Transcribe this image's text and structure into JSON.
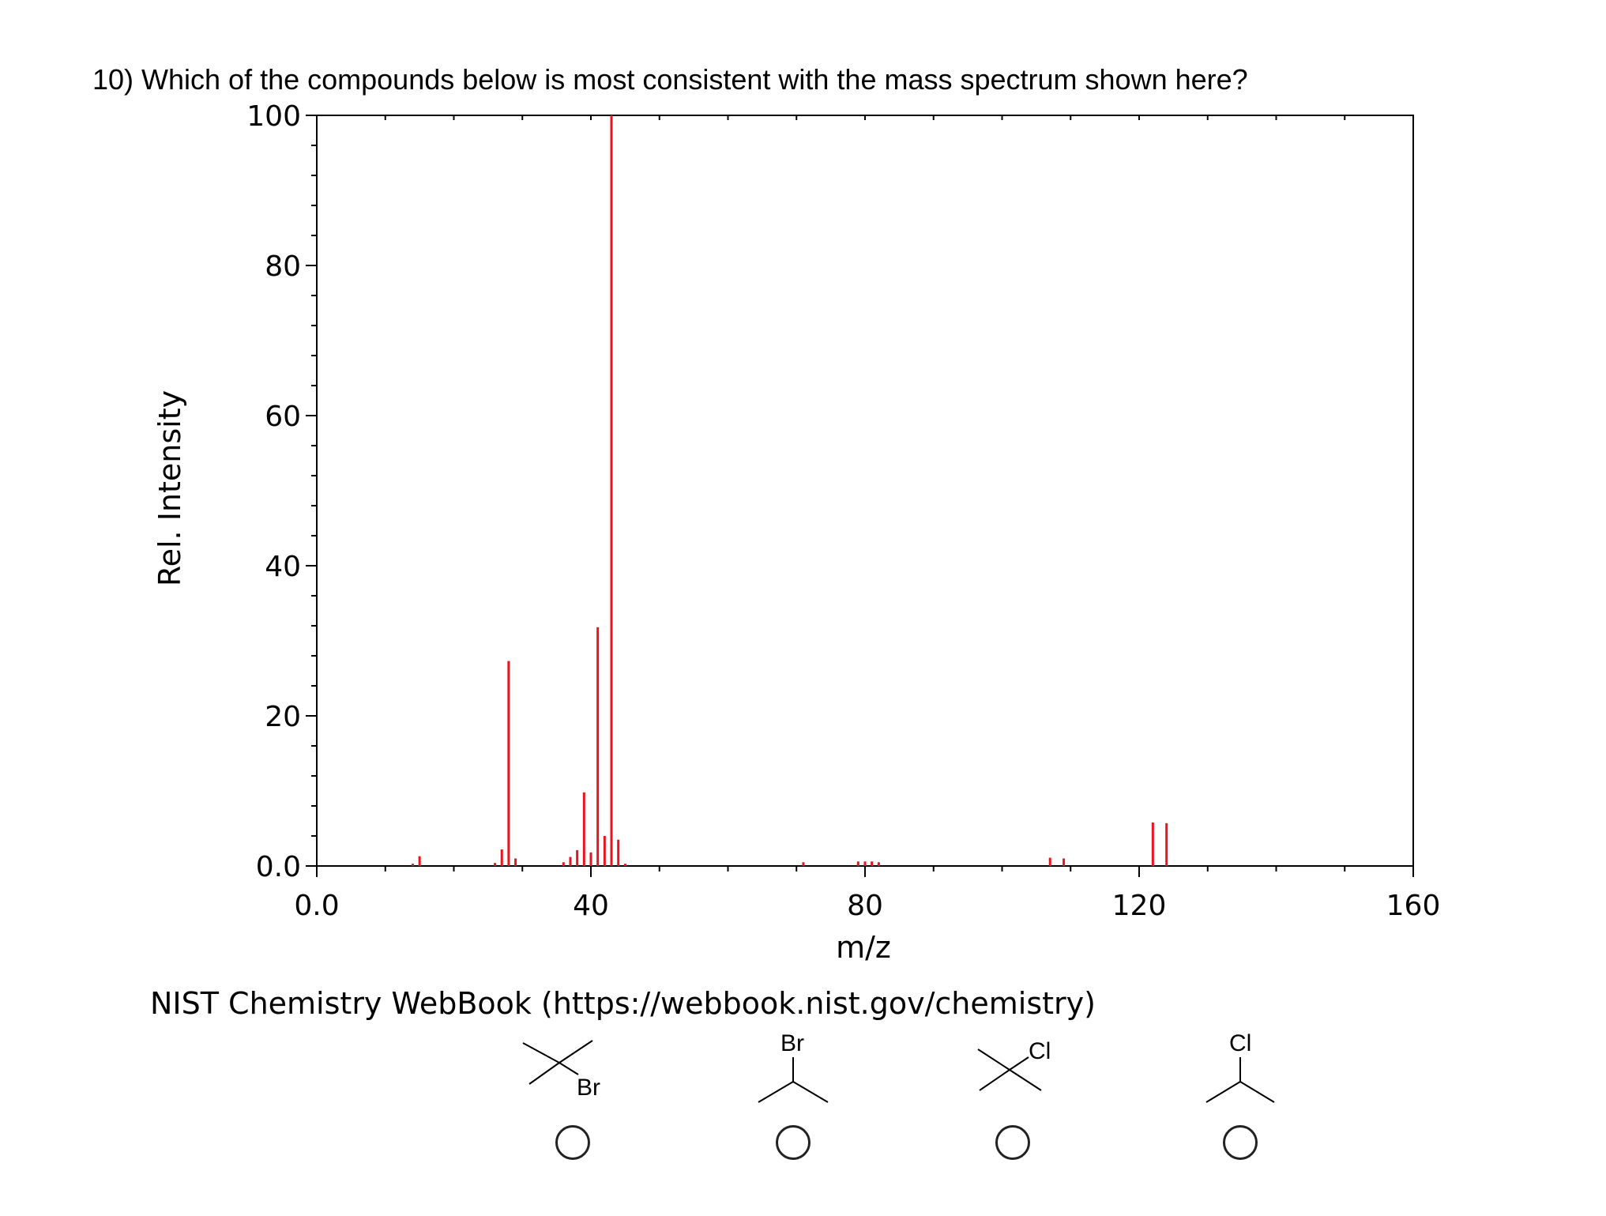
{
  "question": "10) Which of the compounds below is most consistent with the mass spectrum shown here?",
  "source": "NIST Chemistry WebBook (https://webbook.nist.gov/chemistry)",
  "colors": {
    "peak": "#e8141e",
    "axis": "#000000"
  },
  "chart_data": {
    "type": "bar",
    "title": "",
    "xlabel": "m/z",
    "ylabel": "Rel. Intensity",
    "xlim": [
      0,
      160
    ],
    "ylim": [
      0,
      100
    ],
    "xticks": [
      "0.0",
      "40",
      "80",
      "120",
      "160"
    ],
    "xtick_values": [
      0,
      40,
      80,
      120,
      160
    ],
    "yticks": [
      "0.0",
      "20",
      "40",
      "60",
      "80",
      "100"
    ],
    "ytick_values": [
      0,
      20,
      40,
      60,
      80,
      100
    ],
    "grid": false,
    "peaks": [
      {
        "mz": 14,
        "intensity": 0.3
      },
      {
        "mz": 15,
        "intensity": 1.3
      },
      {
        "mz": 26,
        "intensity": 0.4
      },
      {
        "mz": 27,
        "intensity": 2.2
      },
      {
        "mz": 28,
        "intensity": 27.3
      },
      {
        "mz": 29,
        "intensity": 1.0
      },
      {
        "mz": 36,
        "intensity": 0.5
      },
      {
        "mz": 37,
        "intensity": 1.2
      },
      {
        "mz": 38,
        "intensity": 2.1
      },
      {
        "mz": 39,
        "intensity": 9.8
      },
      {
        "mz": 40,
        "intensity": 1.8
      },
      {
        "mz": 41,
        "intensity": 31.8
      },
      {
        "mz": 42,
        "intensity": 4.0
      },
      {
        "mz": 43,
        "intensity": 100
      },
      {
        "mz": 44,
        "intensity": 3.5
      },
      {
        "mz": 45,
        "intensity": 0.3
      },
      {
        "mz": 71,
        "intensity": 0.5
      },
      {
        "mz": 79,
        "intensity": 0.6
      },
      {
        "mz": 80,
        "intensity": 0.6
      },
      {
        "mz": 81,
        "intensity": 0.6
      },
      {
        "mz": 82,
        "intensity": 0.5
      },
      {
        "mz": 107,
        "intensity": 1.1
      },
      {
        "mz": 109,
        "intensity": 1.0
      },
      {
        "mz": 122,
        "intensity": 5.8
      },
      {
        "mz": 124,
        "intensity": 5.7
      }
    ]
  },
  "choices": [
    {
      "id": "a",
      "label": "Br",
      "structure": "tert-butyl-bromide"
    },
    {
      "id": "b",
      "label": "Br",
      "structure": "isopropyl-bromide"
    },
    {
      "id": "c",
      "label": "Cl",
      "structure": "tert-butyl-chloride"
    },
    {
      "id": "d",
      "label": "Cl",
      "structure": "isopropyl-chloride"
    }
  ]
}
